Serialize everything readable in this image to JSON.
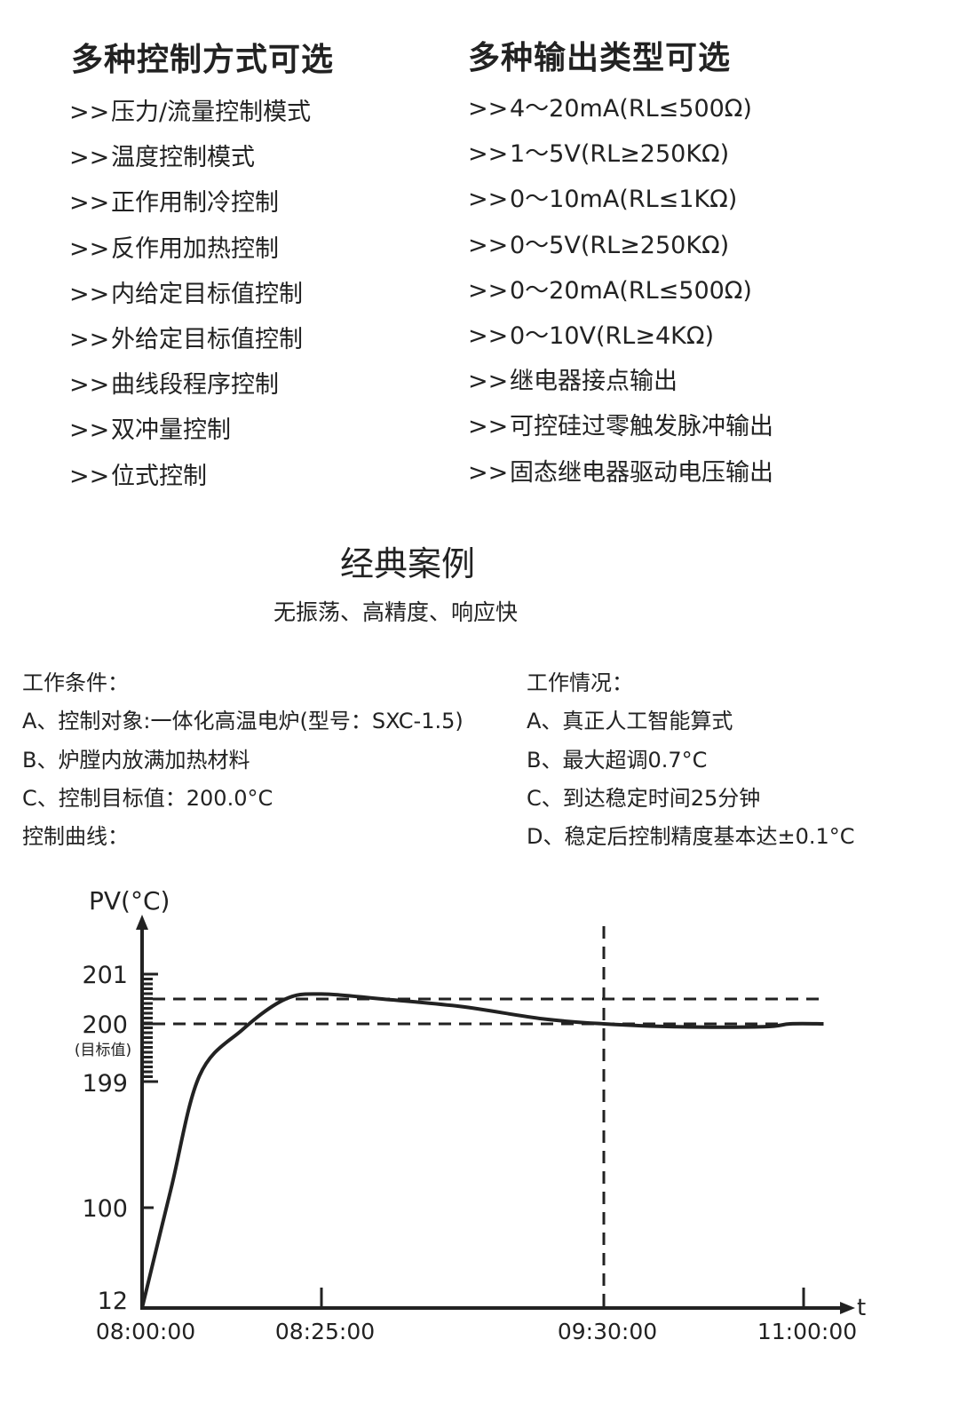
{
  "left_column": {
    "title": "多种控制方式可选",
    "bullet": ">>",
    "items": [
      "压力/流量控制模式",
      "温度控制模式",
      "正作用制冷控制",
      "反作用加热控制",
      "内给定目标值控制",
      "外给定目标值控制",
      "曲线段程序控制",
      "双冲量控制",
      "位式控制"
    ]
  },
  "right_column": {
    "title": "多种输出类型可选",
    "bullet": ">>",
    "items": [
      "4～20mA(RL≤500Ω)",
      "1～5V(RL≥250KΩ)",
      "0～10mA(RL≤1KΩ)",
      "0～5V(RL≥250KΩ)",
      "0～20mA(RL≤500Ω)",
      "0～10V(RL≥4KΩ)",
      "继电器接点输出",
      "可控硅过零触发脉冲输出",
      "固态继电器驱动电压输出"
    ]
  },
  "case": {
    "title": "经典案例",
    "subtitle": "无振荡、高精度、响应快"
  },
  "conditions": {
    "title": "工作条件：",
    "items": [
      "A、控制对象:一体化高温电炉(型号：SXC-1.5)",
      "B、炉膛内放满加热材料",
      "C、控制目标值：200.0°C"
    ],
    "curve_label": "控制曲线："
  },
  "results": {
    "title": "工作情况：",
    "items": [
      "A、真正人工智能算式",
      "B、最大超调0.7°C",
      "C、到达稳定时间25分钟",
      "D、稳定后控制精度基本达±0.1°C"
    ]
  },
  "chart_data": {
    "type": "line",
    "ylabel": "PV(°C)",
    "xlabel": "t",
    "y_ticks": [
      {
        "value": 12,
        "label": "12"
      },
      {
        "value": 100,
        "label": "100"
      },
      {
        "value": 199,
        "label": "199"
      },
      {
        "value": 200,
        "label": "200",
        "note": "(目标值)"
      },
      {
        "value": 201,
        "label": "201"
      }
    ],
    "x_ticks": [
      "08:00:00",
      "08:25:00",
      "09:30:00",
      "11:00:00"
    ],
    "axis_scale": "non-linear (expanded near 199–201)",
    "reference_lines": {
      "horizontal": [
        200.5,
        200.0
      ],
      "vertical": [
        "09:30:00"
      ]
    },
    "series": [
      {
        "x": [
          "08:00",
          "08:04",
          "08:08",
          "08:14",
          "08:20",
          "08:25",
          "08:39",
          "08:57",
          "09:16",
          "09:30",
          "10:02",
          "10:42",
          "10:54",
          "11:09"
        ],
        "y": [
          12,
          114,
          199.1,
          199.9,
          200.5,
          200.6,
          200.5,
          200.35,
          200.1,
          200.0,
          199.95,
          199.95,
          200.0,
          200.0
        ]
      }
    ],
    "grid": false,
    "color": "#222222"
  }
}
